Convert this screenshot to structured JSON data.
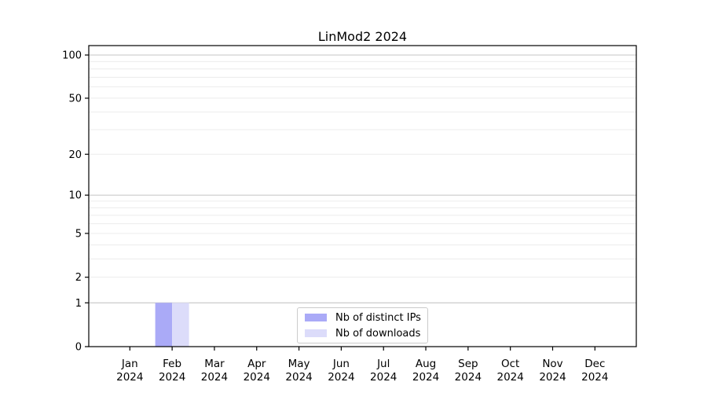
{
  "chart_data": {
    "type": "bar",
    "title": "LinMod2 2024",
    "categories": [
      "Jan 2024",
      "Feb 2024",
      "Mar 2024",
      "Apr 2024",
      "May 2024",
      "Jun 2024",
      "Jul 2024",
      "Aug 2024",
      "Sep 2024",
      "Oct 2024",
      "Nov 2024",
      "Dec 2024"
    ],
    "series": [
      {
        "name": "Nb of distinct IPs",
        "color": "#aaaaf7",
        "values": [
          0,
          1,
          0,
          0,
          0,
          0,
          0,
          0,
          0,
          0,
          0,
          0
        ]
      },
      {
        "name": "Nb of downloads",
        "color": "#dcdcfa",
        "values": [
          0,
          1,
          0,
          0,
          0,
          0,
          0,
          0,
          0,
          0,
          0,
          0
        ]
      }
    ],
    "y_axis": {
      "scale": "log1p",
      "tick_values": [
        100,
        50,
        20,
        10,
        5,
        2,
        1,
        0
      ],
      "ylim": [
        0,
        100
      ],
      "major_gridlines": [
        1,
        10,
        100
      ],
      "minor_gridlines": [
        2,
        3,
        4,
        5,
        6,
        7,
        8,
        9,
        20,
        30,
        40,
        50,
        60,
        70,
        80,
        90
      ]
    },
    "grid": true,
    "legend_position": "lower center"
  },
  "legend": {
    "items": [
      {
        "label": "Nb of distinct IPs",
        "color": "#aaaaf7"
      },
      {
        "label": "Nb of downloads",
        "color": "#dcdcfa"
      }
    ]
  },
  "style": {
    "major_grid_color": "#c6c6c6",
    "minor_grid_color": "#ececec",
    "spine_color": "#000000",
    "text_color": "#000000",
    "legend_border_color": "#cbcbcb"
  }
}
